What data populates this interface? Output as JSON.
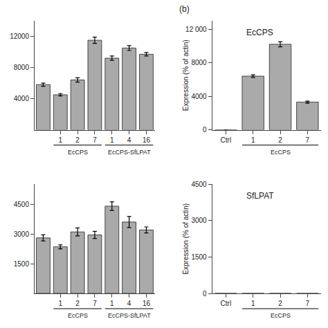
{
  "title": "(b)",
  "chart_data": [
    {
      "type": "bar",
      "categories": [
        null,
        "1",
        "2",
        "7",
        "1",
        "4",
        "16"
      ],
      "values": [
        5800,
        4500,
        6400,
        11500,
        9200,
        10500,
        9700
      ],
      "errors": [
        200,
        150,
        280,
        400,
        280,
        320,
        220
      ],
      "color": "#aaaaaa",
      "ylim": [
        0,
        14000
      ],
      "yticks": [
        4000,
        8000,
        12000
      ],
      "grid": false,
      "annotations": [
        {
          "text": "EcCPS",
          "span": [
            1,
            3
          ]
        },
        {
          "text": "EcCPS-SfLPAT",
          "span": [
            4,
            6
          ]
        }
      ]
    },
    {
      "type": "bar",
      "categories": [
        null,
        "1",
        "2",
        "7",
        "1",
        "4",
        "16"
      ],
      "values": [
        2800,
        2350,
        3100,
        2950,
        4400,
        3600,
        3200
      ],
      "errors": [
        150,
        100,
        200,
        180,
        220,
        280,
        150
      ],
      "color": "#aaaaaa",
      "ylim": [
        0,
        5500
      ],
      "yticks": [
        1500,
        3000,
        4500
      ],
      "grid": false,
      "annotations": [
        {
          "text": "EcCPS",
          "span": [
            1,
            3
          ]
        },
        {
          "text": "EcCPS-SfLPAT",
          "span": [
            4,
            6
          ]
        }
      ]
    },
    {
      "type": "bar",
      "title": "EcCPS",
      "ylabel": "Expression (% of actin)",
      "categories": [
        "Ctrl",
        "1",
        "2",
        "7"
      ],
      "values": [
        0,
        6400,
        10200,
        3300
      ],
      "errors": [
        0,
        150,
        300,
        120
      ],
      "color": "#aaaaaa",
      "ylim": [
        0,
        13000
      ],
      "yticks": [
        0,
        4000,
        8000,
        {
          "value": 12000,
          "label": "12 000"
        }
      ],
      "grid": false,
      "annotations": [
        {
          "text": "EcCPS",
          "span": [
            1,
            3
          ]
        }
      ]
    },
    {
      "type": "bar",
      "title": "SfLPAT",
      "ylabel": "Expression (% of actin)",
      "categories": [
        "Ctrl",
        "1",
        "2",
        "7"
      ],
      "values": [
        0,
        0,
        0,
        0
      ],
      "color": "#aaaaaa",
      "ylim": [
        0,
        4500
      ],
      "yticks": [
        0,
        1500,
        3000,
        4500
      ],
      "grid": false,
      "annotations": [
        {
          "text": "EcCPS",
          "span": [
            1,
            3
          ]
        }
      ]
    }
  ]
}
